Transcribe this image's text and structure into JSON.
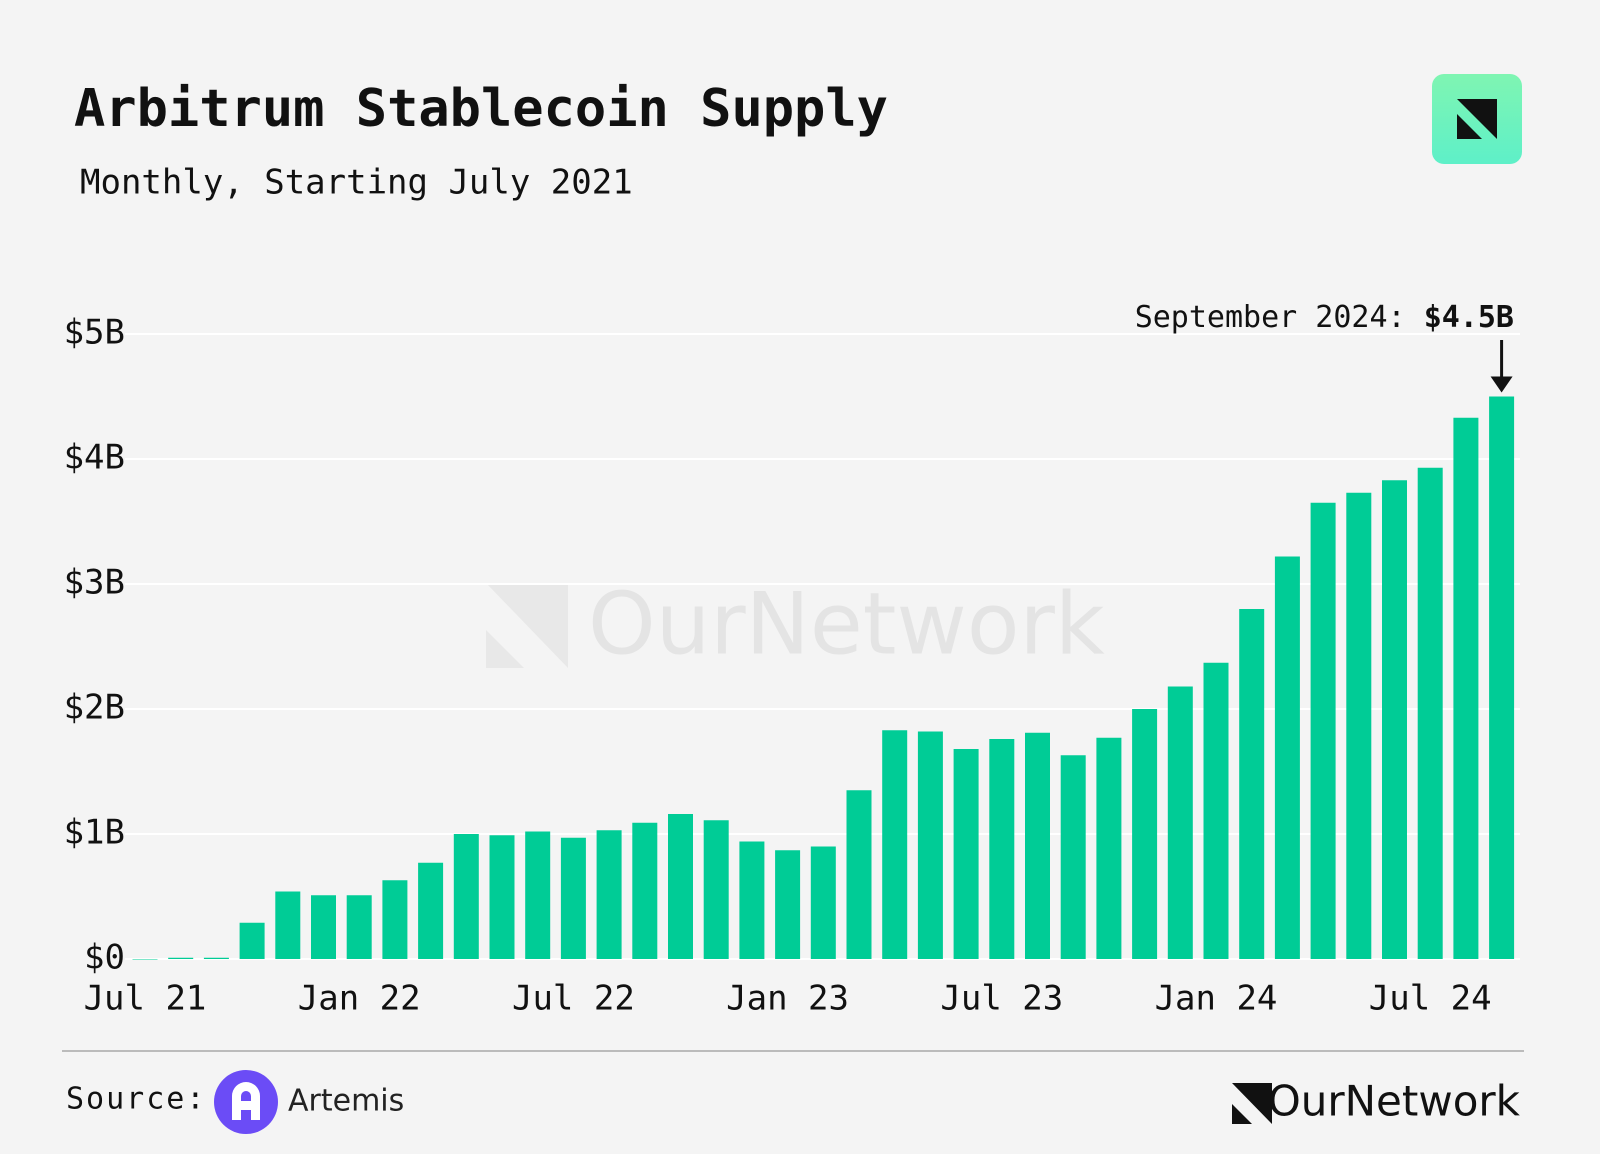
{
  "chart_data": {
    "type": "bar",
    "title": "Arbitrum Stablecoin Supply",
    "subtitle": "Monthly, Starting July 2021",
    "categories": [
      "Jul 21",
      null,
      null,
      null,
      null,
      null,
      "Jan 22",
      null,
      null,
      null,
      null,
      null,
      "Jul 22",
      null,
      null,
      null,
      null,
      null,
      "Jan 23",
      null,
      null,
      null,
      null,
      null,
      "Jul 23",
      null,
      null,
      null,
      null,
      null,
      "Jan 24",
      null,
      null,
      null,
      null,
      null,
      "Jul 24",
      null,
      null
    ],
    "values": [
      0,
      0.01,
      0.01,
      0.29,
      0.54,
      0.51,
      0.51,
      0.63,
      0.77,
      1.0,
      0.99,
      1.02,
      0.97,
      1.03,
      1.09,
      1.16,
      1.11,
      0.94,
      0.87,
      0.9,
      1.35,
      1.83,
      1.82,
      1.68,
      1.76,
      1.81,
      1.63,
      1.77,
      2.0,
      2.18,
      2.37,
      2.8,
      3.22,
      3.65,
      3.73,
      3.83,
      3.93,
      4.33,
      4.5
    ],
    "color": "#00cc96",
    "ylim": [
      0,
      5
    ],
    "yticks": [
      {
        "value": 0,
        "label": "$0"
      },
      {
        "value": 1,
        "label": "$1B"
      },
      {
        "value": 2,
        "label": "$2B"
      },
      {
        "value": 3,
        "label": "$3B"
      },
      {
        "value": 4,
        "label": "$4B"
      },
      {
        "value": 5,
        "label": "$5B"
      }
    ],
    "grid": true,
    "annotation": {
      "text": "September 2024:",
      "value_label": "$4.5B"
    },
    "watermark": "OurNetwork",
    "source": {
      "label": "Source:",
      "name": "Artemis"
    },
    "brand": "OurNetwork"
  }
}
